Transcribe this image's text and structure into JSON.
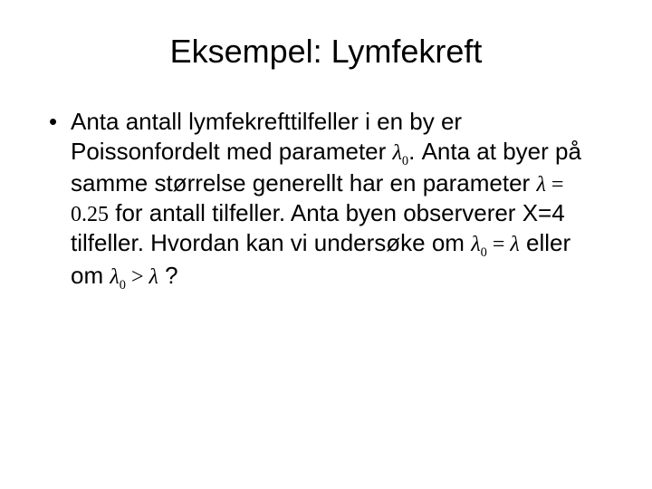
{
  "slide": {
    "title": "Eksempel: Lymfekreft",
    "bullet": {
      "text_part1": "Anta antall lymfekrefttilfeller i en by er Poissonfordelt med parameter ",
      "math_lambda0": "λ",
      "math_lambda0_sub": "0",
      "text_part2": ". Anta at byer på samme størrelse generellt har en parameter ",
      "math_lambda_eq": "λ",
      "math_eq": " = 0.25",
      "text_part3": " for antall tilfeller. Anta byen observerer X=4 tilfeller. Hvordan kan vi undersøke om ",
      "math_cmp1_l": "λ",
      "math_cmp1_sub": "0",
      "math_cmp1_eq": " = ",
      "math_cmp1_r": "λ",
      "text_part4": " eller om ",
      "math_cmp2_l": "λ",
      "math_cmp2_sub": "0",
      "math_cmp2_gt": " > ",
      "math_cmp2_r": "λ",
      "text_part5": " ?"
    }
  },
  "style": {
    "background_color": "#ffffff",
    "text_color": "#000000",
    "title_fontsize": 36,
    "body_fontsize": 26,
    "math_fontsize": 24,
    "font_family_body": "Arial",
    "font_family_math": "Times New Roman"
  }
}
